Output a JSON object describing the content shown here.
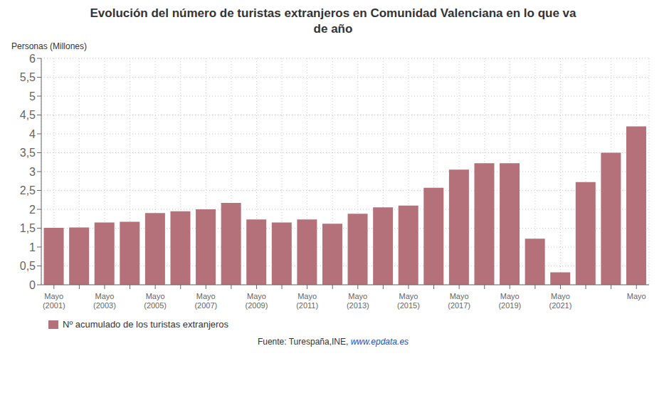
{
  "chart_data": {
    "type": "bar",
    "title": "Evolución del número de turistas extranjeros en Comunidad Valenciana en lo que va\nde año",
    "ylabel": "Personas (Millones)",
    "categories": [
      "Mayo\n(2001)",
      null,
      "Mayo\n(2003)",
      null,
      "Mayo\n(2005)",
      null,
      "Mayo\n(2007)",
      null,
      "Mayo\n(2009)",
      null,
      "Mayo\n(2011)",
      null,
      "Mayo\n(2013)",
      null,
      "Mayo\n(2015)",
      null,
      "Mayo\n(2017)",
      null,
      "Mayo\n(2019)",
      null,
      "Mayo\n(2021)",
      null,
      null,
      "Mayo"
    ],
    "series": [
      {
        "name": "Nº acumulado de los turistas extranjeros",
        "color": "#b5717a",
        "values": [
          1.51,
          1.52,
          1.65,
          1.67,
          1.9,
          1.95,
          2.0,
          2.17,
          1.73,
          1.65,
          1.73,
          1.62,
          1.88,
          2.05,
          2.1,
          2.57,
          3.05,
          3.22,
          3.22,
          1.22,
          0.33,
          2.72,
          3.5,
          4.2
        ]
      }
    ],
    "ylim": [
      0,
      6
    ],
    "yticks": [
      0,
      {
        "value": 0.5,
        "label": "0,5"
      },
      1,
      {
        "value": 1.5,
        "label": "1,5"
      },
      2,
      {
        "value": 2.5,
        "label": "2,5"
      },
      3,
      {
        "value": 3.5,
        "label": "3,5"
      },
      4,
      {
        "value": 4.5,
        "label": "4,5"
      },
      5,
      {
        "value": 5.5,
        "label": "5,5"
      },
      6
    ],
    "grid": true,
    "legend": "lower left",
    "annotations": [
      "Fuente: Turespaña,INE, ",
      "www.epdata.es"
    ]
  }
}
